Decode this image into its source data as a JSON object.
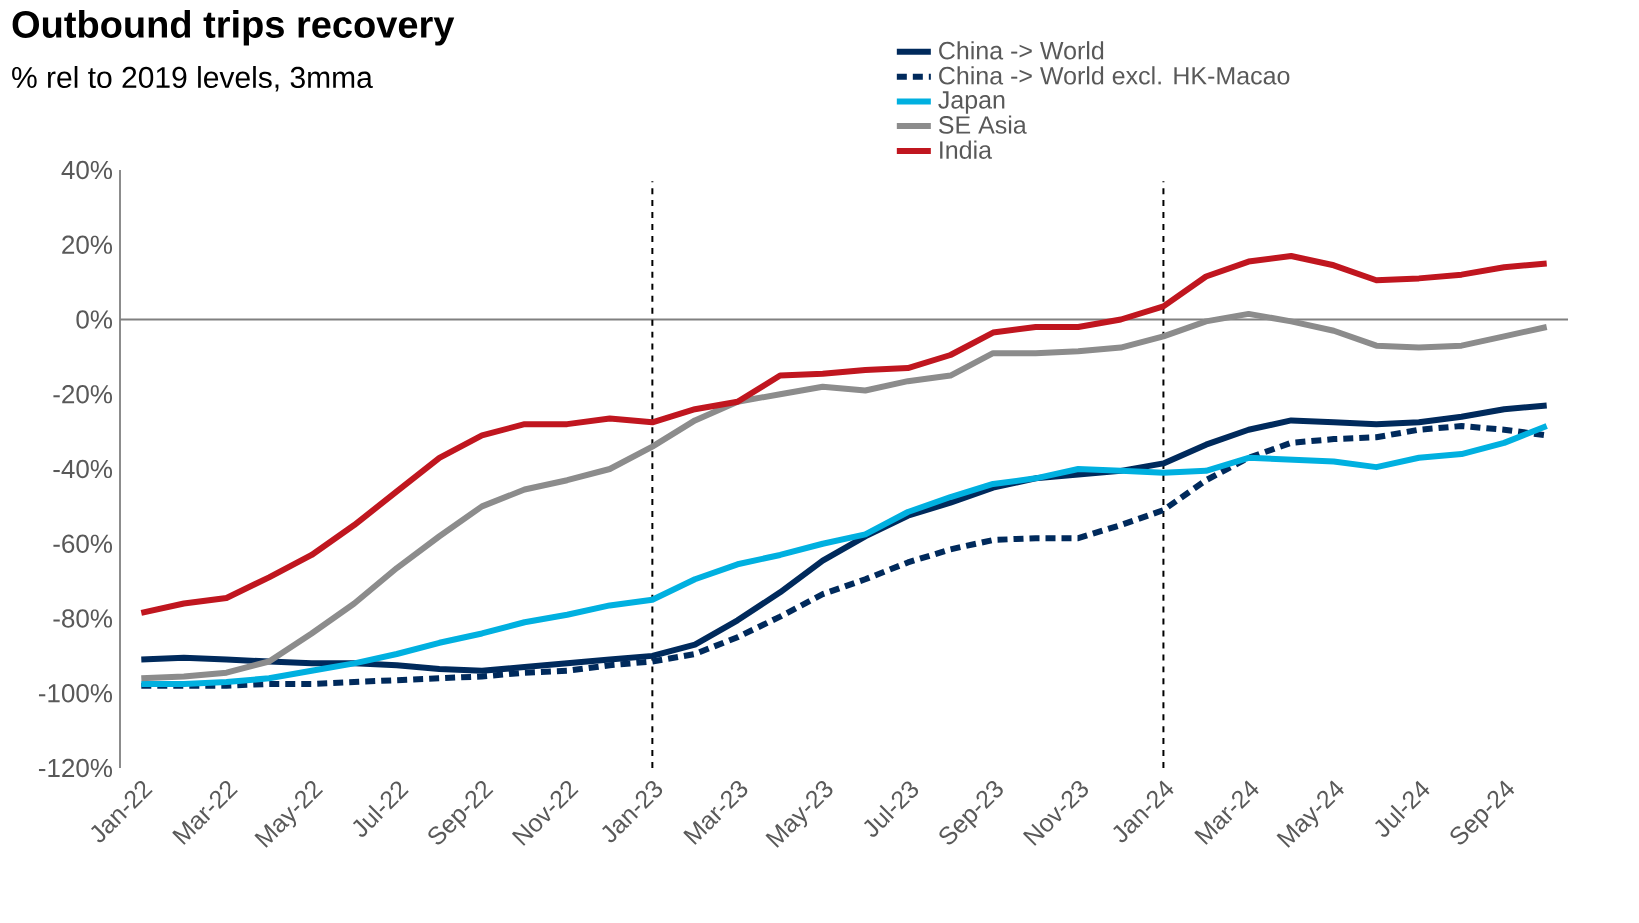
{
  "chart_data": {
    "type": "line",
    "title": "Outbound trips recovery",
    "subtitle": "% rel to 2019 levels, 3mma",
    "categories": [
      "Jan-22",
      null,
      "Mar-22",
      null,
      "May-22",
      null,
      "Jul-22",
      null,
      "Sep-22",
      null,
      "Nov-22",
      null,
      "Jan-23",
      null,
      "Mar-23",
      null,
      "May-23",
      null,
      "Jul-23",
      null,
      "Sep-23",
      null,
      "Nov-23",
      null,
      "Jan-24",
      null,
      "Mar-24",
      null,
      "May-24",
      null,
      "Jul-24",
      null,
      "Sep-24",
      null
    ],
    "series": [
      {
        "name": "China -> World",
        "color": "#002a5c",
        "line_style": "solid",
        "values": [
          -91,
          -90.5,
          -91,
          -91.5,
          -92,
          -92,
          -92.5,
          -93.5,
          -94,
          -93,
          -92,
          -91,
          -90,
          -87,
          -80.5,
          -73,
          -64.5,
          -58,
          -52.5,
          -49,
          -45,
          -42.5,
          -41.5,
          -40.5,
          -38.5,
          -33.5,
          -29.5,
          -27,
          -27.5,
          -28,
          -27.5,
          -26,
          -24,
          -23
        ]
      },
      {
        "name": "China -> World excl. HK-Macao",
        "color": "#002a5c",
        "line_style": "dashed",
        "values": [
          -98,
          -98,
          -98,
          -97.5,
          -97.5,
          -97,
          -96.5,
          -96,
          -95.5,
          -94.5,
          -94,
          -92.5,
          -91.5,
          -89.5,
          -85,
          -79.5,
          -73.5,
          -69.5,
          -65,
          -61.5,
          -59,
          -58.5,
          -58.5,
          -55,
          -51,
          -43,
          -37,
          -33,
          -32,
          -31.5,
          -29.5,
          -28.5,
          -29.5,
          -31
        ]
      },
      {
        "name": "Japan",
        "color": "#00b0e0",
        "line_style": "solid",
        "values": [
          -97.5,
          -97.5,
          -97,
          -96,
          -94,
          -92,
          -89.5,
          -86.5,
          -84,
          -81,
          -79,
          -76.5,
          -75,
          -69.5,
          -65.5,
          -63,
          -60,
          -57.5,
          -51.5,
          -47.5,
          -44,
          -42.5,
          -40,
          -40.5,
          -41,
          -40.5,
          -37,
          -37.5,
          -38,
          -39.5,
          -37,
          -36,
          -33,
          -28.5
        ]
      },
      {
        "name": "SE Asia",
        "color": "#8c8c8c",
        "line_style": "solid",
        "values": [
          -96,
          -95.5,
          -94.5,
          -91.5,
          -84,
          -76,
          -66.5,
          -58,
          -50,
          -45.5,
          -43,
          -40,
          -34,
          -27,
          -22,
          -20,
          -18,
          -19,
          -16.5,
          -15,
          -9,
          -9,
          -8.5,
          -7.5,
          -4.5,
          -0.5,
          1.5,
          -0.5,
          -3,
          -7,
          -7.5,
          -7,
          -4.5,
          -2
        ]
      },
      {
        "name": "India",
        "color": "#c0161f",
        "line_style": "solid",
        "values": [
          -78.5,
          -76,
          -74.5,
          -69,
          -63,
          -55,
          -46,
          -37,
          -31,
          -28,
          -28,
          -26.5,
          -27.5,
          -24,
          -22,
          -15,
          -14.5,
          -13.5,
          -13,
          -9.5,
          -3.5,
          -2,
          -2,
          0,
          3.5,
          11.5,
          15.5,
          17,
          14.5,
          10.5,
          11,
          12,
          14,
          15
        ]
      }
    ],
    "ylim": [
      -120,
      40
    ],
    "yticks": [
      {
        "value": -120,
        "label": "-120%"
      },
      {
        "value": -100,
        "label": "-100%"
      },
      {
        "value": -80,
        "label": "-80%"
      },
      {
        "value": -60,
        "label": "-60%"
      },
      {
        "value": -40,
        "label": "-40%"
      },
      {
        "value": -20,
        "label": "-20%"
      },
      {
        "value": 0,
        "label": "0%"
      },
      {
        "value": 20,
        "label": "20%"
      },
      {
        "value": 40,
        "label": "40%"
      }
    ],
    "ref_lines": [
      {
        "axis": "y",
        "value": 0,
        "color": "#808080",
        "line_style": "solid"
      },
      {
        "axis": "x",
        "value": "Jan-23",
        "color": "#000000",
        "line_style": "dashed"
      },
      {
        "axis": "x",
        "value": "Jan-24",
        "color": "#000000",
        "line_style": "dashed"
      }
    ],
    "legend": "top right"
  }
}
